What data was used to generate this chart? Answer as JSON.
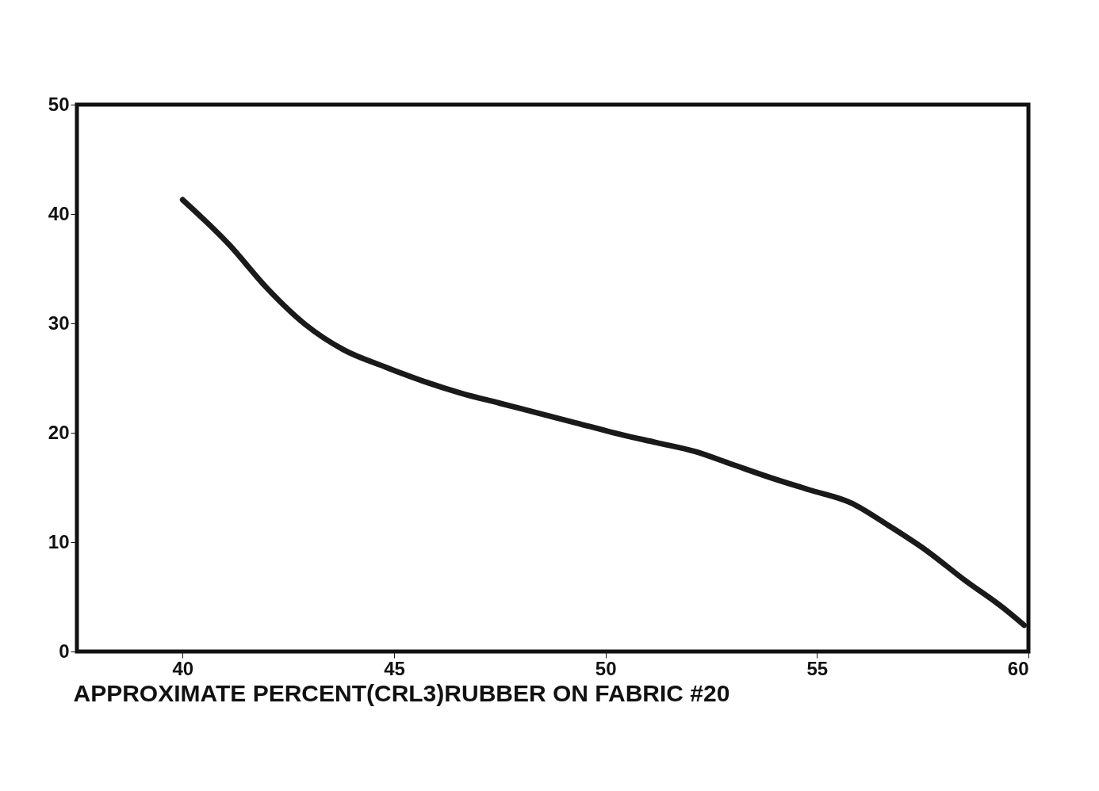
{
  "chart_data": {
    "type": "line",
    "xlabel": "APPROXIMATE PERCENT(CRL3)RUBBER ON FABRIC #20",
    "xlim": [
      37.5,
      60
    ],
    "xticks": [
      40,
      45,
      50,
      55,
      60
    ],
    "ylim": [
      0,
      50
    ],
    "yticks": [
      0,
      10,
      20,
      30,
      40,
      50
    ],
    "grid": false,
    "marker": "none",
    "line_style": "solid",
    "series": [
      {
        "color": "#1a1a1a",
        "x": [
          40,
          41.1,
          42.0,
          42.9,
          43.8,
          44.8,
          45.7,
          46.6,
          47.5,
          48.4,
          49.3,
          50.3,
          51.2,
          52.1,
          53.0,
          53.9,
          54.8,
          55.8,
          56.7,
          57.6,
          58.5,
          59.4,
          59.9
        ],
        "values": [
          41.3,
          37.2,
          33.2,
          29.9,
          27.6,
          26.0,
          24.7,
          23.6,
          22.7,
          21.8,
          20.9,
          19.9,
          19.1,
          18.3,
          17.1,
          15.9,
          14.8,
          13.6,
          11.5,
          9.2,
          6.5,
          4.0,
          2.4
        ]
      }
    ]
  }
}
